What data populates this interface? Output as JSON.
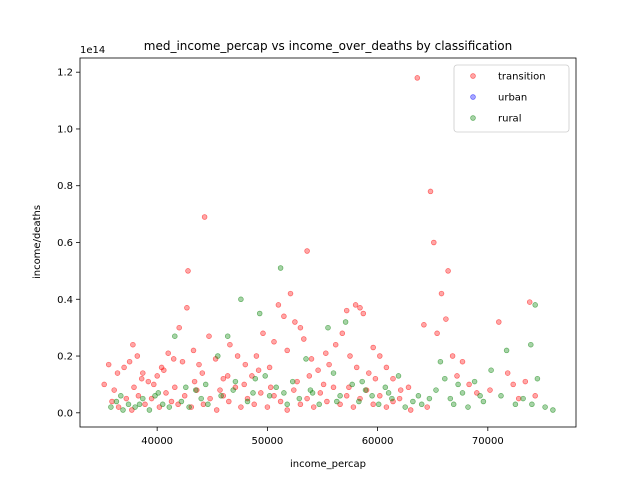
{
  "chart_data": {
    "type": "scatter",
    "title": "med_income_percap vs income_over_deaths by classification",
    "xlabel": "income_percap",
    "ylabel": "income/deaths",
    "offset_text": "1e14",
    "xlim": [
      33000,
      78000
    ],
    "ylim": [
      -0.05,
      1.25
    ],
    "xticks": [
      40000,
      50000,
      60000,
      70000
    ],
    "xtick_labels": [
      "40000",
      "50000",
      "60000",
      "70000"
    ],
    "yticks": [
      0.0,
      0.2,
      0.4,
      0.6,
      0.8,
      1.0,
      1.2
    ],
    "ytick_labels": [
      "0.0",
      "0.2",
      "0.4",
      "0.6",
      "0.8",
      "1.0",
      "1.2"
    ],
    "grid": false,
    "legend_position": "top-right",
    "series": [
      {
        "name": "transition",
        "color": "#ff0000",
        "points": [
          [
            35200,
            0.1
          ],
          [
            35600,
            0.17
          ],
          [
            36400,
            0.14
          ],
          [
            37000,
            0.16
          ],
          [
            37500,
            0.18
          ],
          [
            37800,
            0.24
          ],
          [
            38200,
            0.2
          ],
          [
            38600,
            0.12
          ],
          [
            39200,
            0.11
          ],
          [
            40000,
            0.13
          ],
          [
            40400,
            0.16
          ],
          [
            41000,
            0.21
          ],
          [
            41500,
            0.19
          ],
          [
            42000,
            0.3
          ],
          [
            42300,
            0.18
          ],
          [
            42700,
            0.37
          ],
          [
            42800,
            0.5
          ],
          [
            43300,
            0.22
          ],
          [
            43800,
            0.17
          ],
          [
            44100,
            0.14
          ],
          [
            44300,
            0.69
          ],
          [
            44700,
            0.27
          ],
          [
            45300,
            0.19
          ],
          [
            46000,
            0.12
          ],
          [
            46600,
            0.24
          ],
          [
            47300,
            0.2
          ],
          [
            48000,
            0.17
          ],
          [
            48600,
            0.13
          ],
          [
            49000,
            0.2
          ],
          [
            49600,
            0.28
          ],
          [
            50200,
            0.16
          ],
          [
            50600,
            0.25
          ],
          [
            51000,
            0.38
          ],
          [
            51500,
            0.34
          ],
          [
            51800,
            0.22
          ],
          [
            52100,
            0.42
          ],
          [
            52500,
            0.32
          ],
          [
            53000,
            0.3
          ],
          [
            53300,
            0.26
          ],
          [
            53600,
            0.57
          ],
          [
            54000,
            0.19
          ],
          [
            54600,
            0.15
          ],
          [
            55300,
            0.21
          ],
          [
            55600,
            0.17
          ],
          [
            56200,
            0.24
          ],
          [
            56800,
            0.28
          ],
          [
            57200,
            0.36
          ],
          [
            57500,
            0.2
          ],
          [
            58000,
            0.38
          ],
          [
            58400,
            0.37
          ],
          [
            58700,
            0.35
          ],
          [
            59200,
            0.14
          ],
          [
            59600,
            0.23
          ],
          [
            60200,
            0.2
          ],
          [
            60800,
            0.16
          ],
          [
            61400,
            0.12
          ],
          [
            62100,
            0.08
          ],
          [
            62800,
            0.09
          ],
          [
            63600,
            1.18
          ],
          [
            64200,
            0.31
          ],
          [
            64800,
            0.78
          ],
          [
            65100,
            0.6
          ],
          [
            65400,
            0.28
          ],
          [
            65800,
            0.42
          ],
          [
            66200,
            0.33
          ],
          [
            66400,
            0.5
          ],
          [
            66800,
            0.2
          ],
          [
            67200,
            0.13
          ],
          [
            67700,
            0.18
          ],
          [
            68300,
            0.1
          ],
          [
            69000,
            0.07
          ],
          [
            70200,
            0.08
          ],
          [
            71000,
            0.32
          ],
          [
            71800,
            0.14
          ],
          [
            72300,
            0.1
          ],
          [
            72800,
            0.05
          ],
          [
            73400,
            0.11
          ],
          [
            73800,
            0.39
          ],
          [
            74300,
            0.06
          ],
          [
            35900,
            0.04
          ],
          [
            36500,
            0.02
          ],
          [
            37200,
            0.05
          ],
          [
            37700,
            0.01
          ],
          [
            38300,
            0.06
          ],
          [
            38900,
            0.03
          ],
          [
            39500,
            0.05
          ],
          [
            40200,
            0.02
          ],
          [
            40800,
            0.07
          ],
          [
            41300,
            0.04
          ],
          [
            41900,
            0.03
          ],
          [
            42500,
            0.06
          ],
          [
            43100,
            0.02
          ],
          [
            43600,
            0.08
          ],
          [
            44200,
            0.03
          ],
          [
            44800,
            0.05
          ],
          [
            45400,
            0.01
          ],
          [
            46000,
            0.06
          ],
          [
            46500,
            0.04
          ],
          [
            47100,
            0.09
          ],
          [
            47600,
            0.02
          ],
          [
            48200,
            0.05
          ],
          [
            48800,
            0.03
          ],
          [
            49400,
            0.07
          ],
          [
            50000,
            0.02
          ],
          [
            50600,
            0.06
          ],
          [
            51200,
            0.04
          ],
          [
            51800,
            0.01
          ],
          [
            52400,
            0.08
          ],
          [
            53000,
            0.03
          ],
          [
            53600,
            0.05
          ],
          [
            54200,
            0.02
          ],
          [
            54800,
            0.07
          ],
          [
            55400,
            0.04
          ],
          [
            56000,
            0.09
          ],
          [
            56600,
            0.03
          ],
          [
            57200,
            0.06
          ],
          [
            57800,
            0.02
          ],
          [
            58400,
            0.05
          ],
          [
            59000,
            0.08
          ],
          [
            59600,
            0.03
          ],
          [
            60200,
            0.06
          ],
          [
            60800,
            0.02
          ],
          [
            61400,
            0.04
          ],
          [
            62000,
            0.05
          ],
          [
            63000,
            0.01
          ],
          [
            64500,
            0.02
          ],
          [
            36100,
            0.08
          ],
          [
            37900,
            0.09
          ],
          [
            39700,
            0.1
          ],
          [
            41600,
            0.09
          ],
          [
            43400,
            0.11
          ],
          [
            45700,
            0.08
          ],
          [
            47900,
            0.1
          ],
          [
            50300,
            0.09
          ],
          [
            52700,
            0.11
          ],
          [
            55100,
            0.1
          ],
          [
            57400,
            0.09
          ],
          [
            59800,
            0.12
          ],
          [
            38700,
            0.14
          ],
          [
            40600,
            0.15
          ],
          [
            46400,
            0.13
          ],
          [
            49200,
            0.15
          ],
          [
            53800,
            0.13
          ],
          [
            58100,
            0.16
          ]
        ]
      },
      {
        "name": "urban",
        "color": "#0000ff",
        "points": []
      },
      {
        "name": "rural",
        "color": "#008000",
        "points": [
          [
            35800,
            0.02
          ],
          [
            36300,
            0.04
          ],
          [
            36900,
            0.01
          ],
          [
            37400,
            0.03
          ],
          [
            38000,
            0.02
          ],
          [
            38700,
            0.05
          ],
          [
            39300,
            0.01
          ],
          [
            39800,
            0.06
          ],
          [
            40500,
            0.03
          ],
          [
            41100,
            0.02
          ],
          [
            41600,
            0.27
          ],
          [
            42200,
            0.04
          ],
          [
            42900,
            0.02
          ],
          [
            43500,
            0.08
          ],
          [
            44000,
            0.05
          ],
          [
            44600,
            0.03
          ],
          [
            45500,
            0.2
          ],
          [
            45800,
            0.06
          ],
          [
            46400,
            0.27
          ],
          [
            47100,
            0.11
          ],
          [
            47600,
            0.4
          ],
          [
            48200,
            0.04
          ],
          [
            48700,
            0.07
          ],
          [
            49300,
            0.35
          ],
          [
            49800,
            0.13
          ],
          [
            50200,
            0.06
          ],
          [
            50800,
            0.09
          ],
          [
            51200,
            0.51
          ],
          [
            51800,
            0.03
          ],
          [
            52300,
            0.11
          ],
          [
            52900,
            0.05
          ],
          [
            53500,
            0.19
          ],
          [
            54100,
            0.07
          ],
          [
            54700,
            0.03
          ],
          [
            55500,
            0.3
          ],
          [
            56000,
            0.14
          ],
          [
            56600,
            0.06
          ],
          [
            57100,
            0.32
          ],
          [
            57700,
            0.1
          ],
          [
            58300,
            0.04
          ],
          [
            58900,
            0.08
          ],
          [
            59500,
            0.06
          ],
          [
            60100,
            0.03
          ],
          [
            60700,
            0.09
          ],
          [
            61300,
            0.05
          ],
          [
            61900,
            0.13
          ],
          [
            62500,
            0.02
          ],
          [
            63200,
            0.04
          ],
          [
            64000,
            0.03
          ],
          [
            64700,
            0.05
          ],
          [
            65300,
            0.08
          ],
          [
            65700,
            0.18
          ],
          [
            66100,
            0.12
          ],
          [
            66600,
            0.05
          ],
          [
            67300,
            0.1
          ],
          [
            67700,
            0.07
          ],
          [
            68200,
            0.02
          ],
          [
            68800,
            0.11
          ],
          [
            69600,
            0.04
          ],
          [
            70300,
            0.15
          ],
          [
            71200,
            0.06
          ],
          [
            71700,
            0.22
          ],
          [
            72500,
            0.03
          ],
          [
            73200,
            0.05
          ],
          [
            73900,
            0.24
          ],
          [
            74300,
            0.38
          ],
          [
            74500,
            0.12
          ],
          [
            75200,
            0.02
          ],
          [
            75900,
            0.01
          ],
          [
            74000,
            0.03
          ],
          [
            36700,
            0.06
          ],
          [
            38400,
            0.03
          ],
          [
            40100,
            0.07
          ],
          [
            42600,
            0.09
          ],
          [
            44400,
            0.1
          ],
          [
            46900,
            0.08
          ],
          [
            48900,
            0.12
          ],
          [
            51500,
            0.07
          ],
          [
            53900,
            0.08
          ],
          [
            56300,
            0.04
          ],
          [
            58600,
            0.11
          ],
          [
            61000,
            0.07
          ],
          [
            63700,
            0.06
          ],
          [
            66900,
            0.03
          ],
          [
            69300,
            0.06
          ]
        ]
      }
    ]
  }
}
